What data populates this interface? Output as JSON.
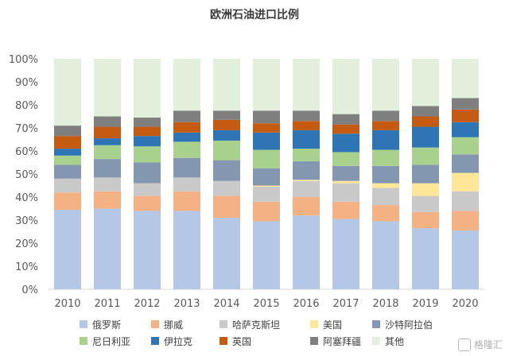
{
  "chart_data": {
    "type": "bar",
    "stacked": true,
    "title": "欧洲石油进口比例",
    "categories": [
      "2010",
      "2011",
      "2012",
      "2013",
      "2014",
      "2015",
      "2016",
      "2017",
      "2018",
      "2019",
      "2020"
    ],
    "ylim": [
      0,
      100
    ],
    "yticks": [
      "0%",
      "10%",
      "20%",
      "30%",
      "40%",
      "50%",
      "60%",
      "70%",
      "80%",
      "90%",
      "100%"
    ],
    "grid": false,
    "legend_position": "bottom",
    "series": [
      {
        "name": "俄罗斯",
        "color": "#b4c7e7",
        "values": [
          34.5,
          35.0,
          34.0,
          34.0,
          31.0,
          29.5,
          32.0,
          30.5,
          29.5,
          26.5,
          25.5
        ]
      },
      {
        "name": "挪威",
        "color": "#f4b183",
        "values": [
          7.5,
          7.5,
          6.5,
          8.5,
          9.5,
          8.5,
          8.0,
          7.5,
          7.0,
          7.0,
          8.5
        ]
      },
      {
        "name": "哈萨克斯坦",
        "color": "#c9c9c9",
        "values": [
          6.0,
          6.0,
          5.5,
          6.0,
          6.5,
          6.5,
          7.0,
          8.0,
          7.5,
          7.0,
          8.5
        ]
      },
      {
        "name": "美国",
        "color": "#ffe699",
        "values": [
          0,
          0,
          0,
          0,
          0,
          0.5,
          0.5,
          1.0,
          2.0,
          5.5,
          8.0
        ]
      },
      {
        "name": "沙特阿拉伯",
        "color": "#8497b0",
        "values": [
          6.0,
          8.0,
          9.0,
          8.5,
          9.0,
          7.5,
          8.0,
          6.5,
          7.5,
          8.0,
          8.0
        ]
      },
      {
        "name": "尼日利亚",
        "color": "#a9d18e",
        "values": [
          4.0,
          6.0,
          7.0,
          7.0,
          8.5,
          8.0,
          5.5,
          6.0,
          7.0,
          7.5,
          7.5
        ]
      },
      {
        "name": "伊拉克",
        "color": "#2e75b6",
        "values": [
          3.0,
          3.0,
          4.5,
          4.0,
          4.5,
          7.5,
          8.0,
          8.0,
          8.5,
          9.0,
          6.5
        ]
      },
      {
        "name": "英国",
        "color": "#c55a11",
        "values": [
          5.5,
          5.0,
          4.0,
          4.5,
          4.5,
          4.0,
          4.0,
          4.0,
          4.0,
          4.5,
          5.5
        ]
      },
      {
        "name": "阿塞拜疆",
        "color": "#7f7f7f",
        "values": [
          4.5,
          4.5,
          4.0,
          5.0,
          4.0,
          5.5,
          4.5,
          4.5,
          4.5,
          4.5,
          5.0
        ]
      },
      {
        "name": "其他",
        "color": "#e2efda",
        "values": [
          29.0,
          25.0,
          25.5,
          22.5,
          22.5,
          22.5,
          22.5,
          24.0,
          22.5,
          20.5,
          17.0
        ]
      }
    ]
  },
  "watermark": {
    "text": "格隆汇"
  }
}
